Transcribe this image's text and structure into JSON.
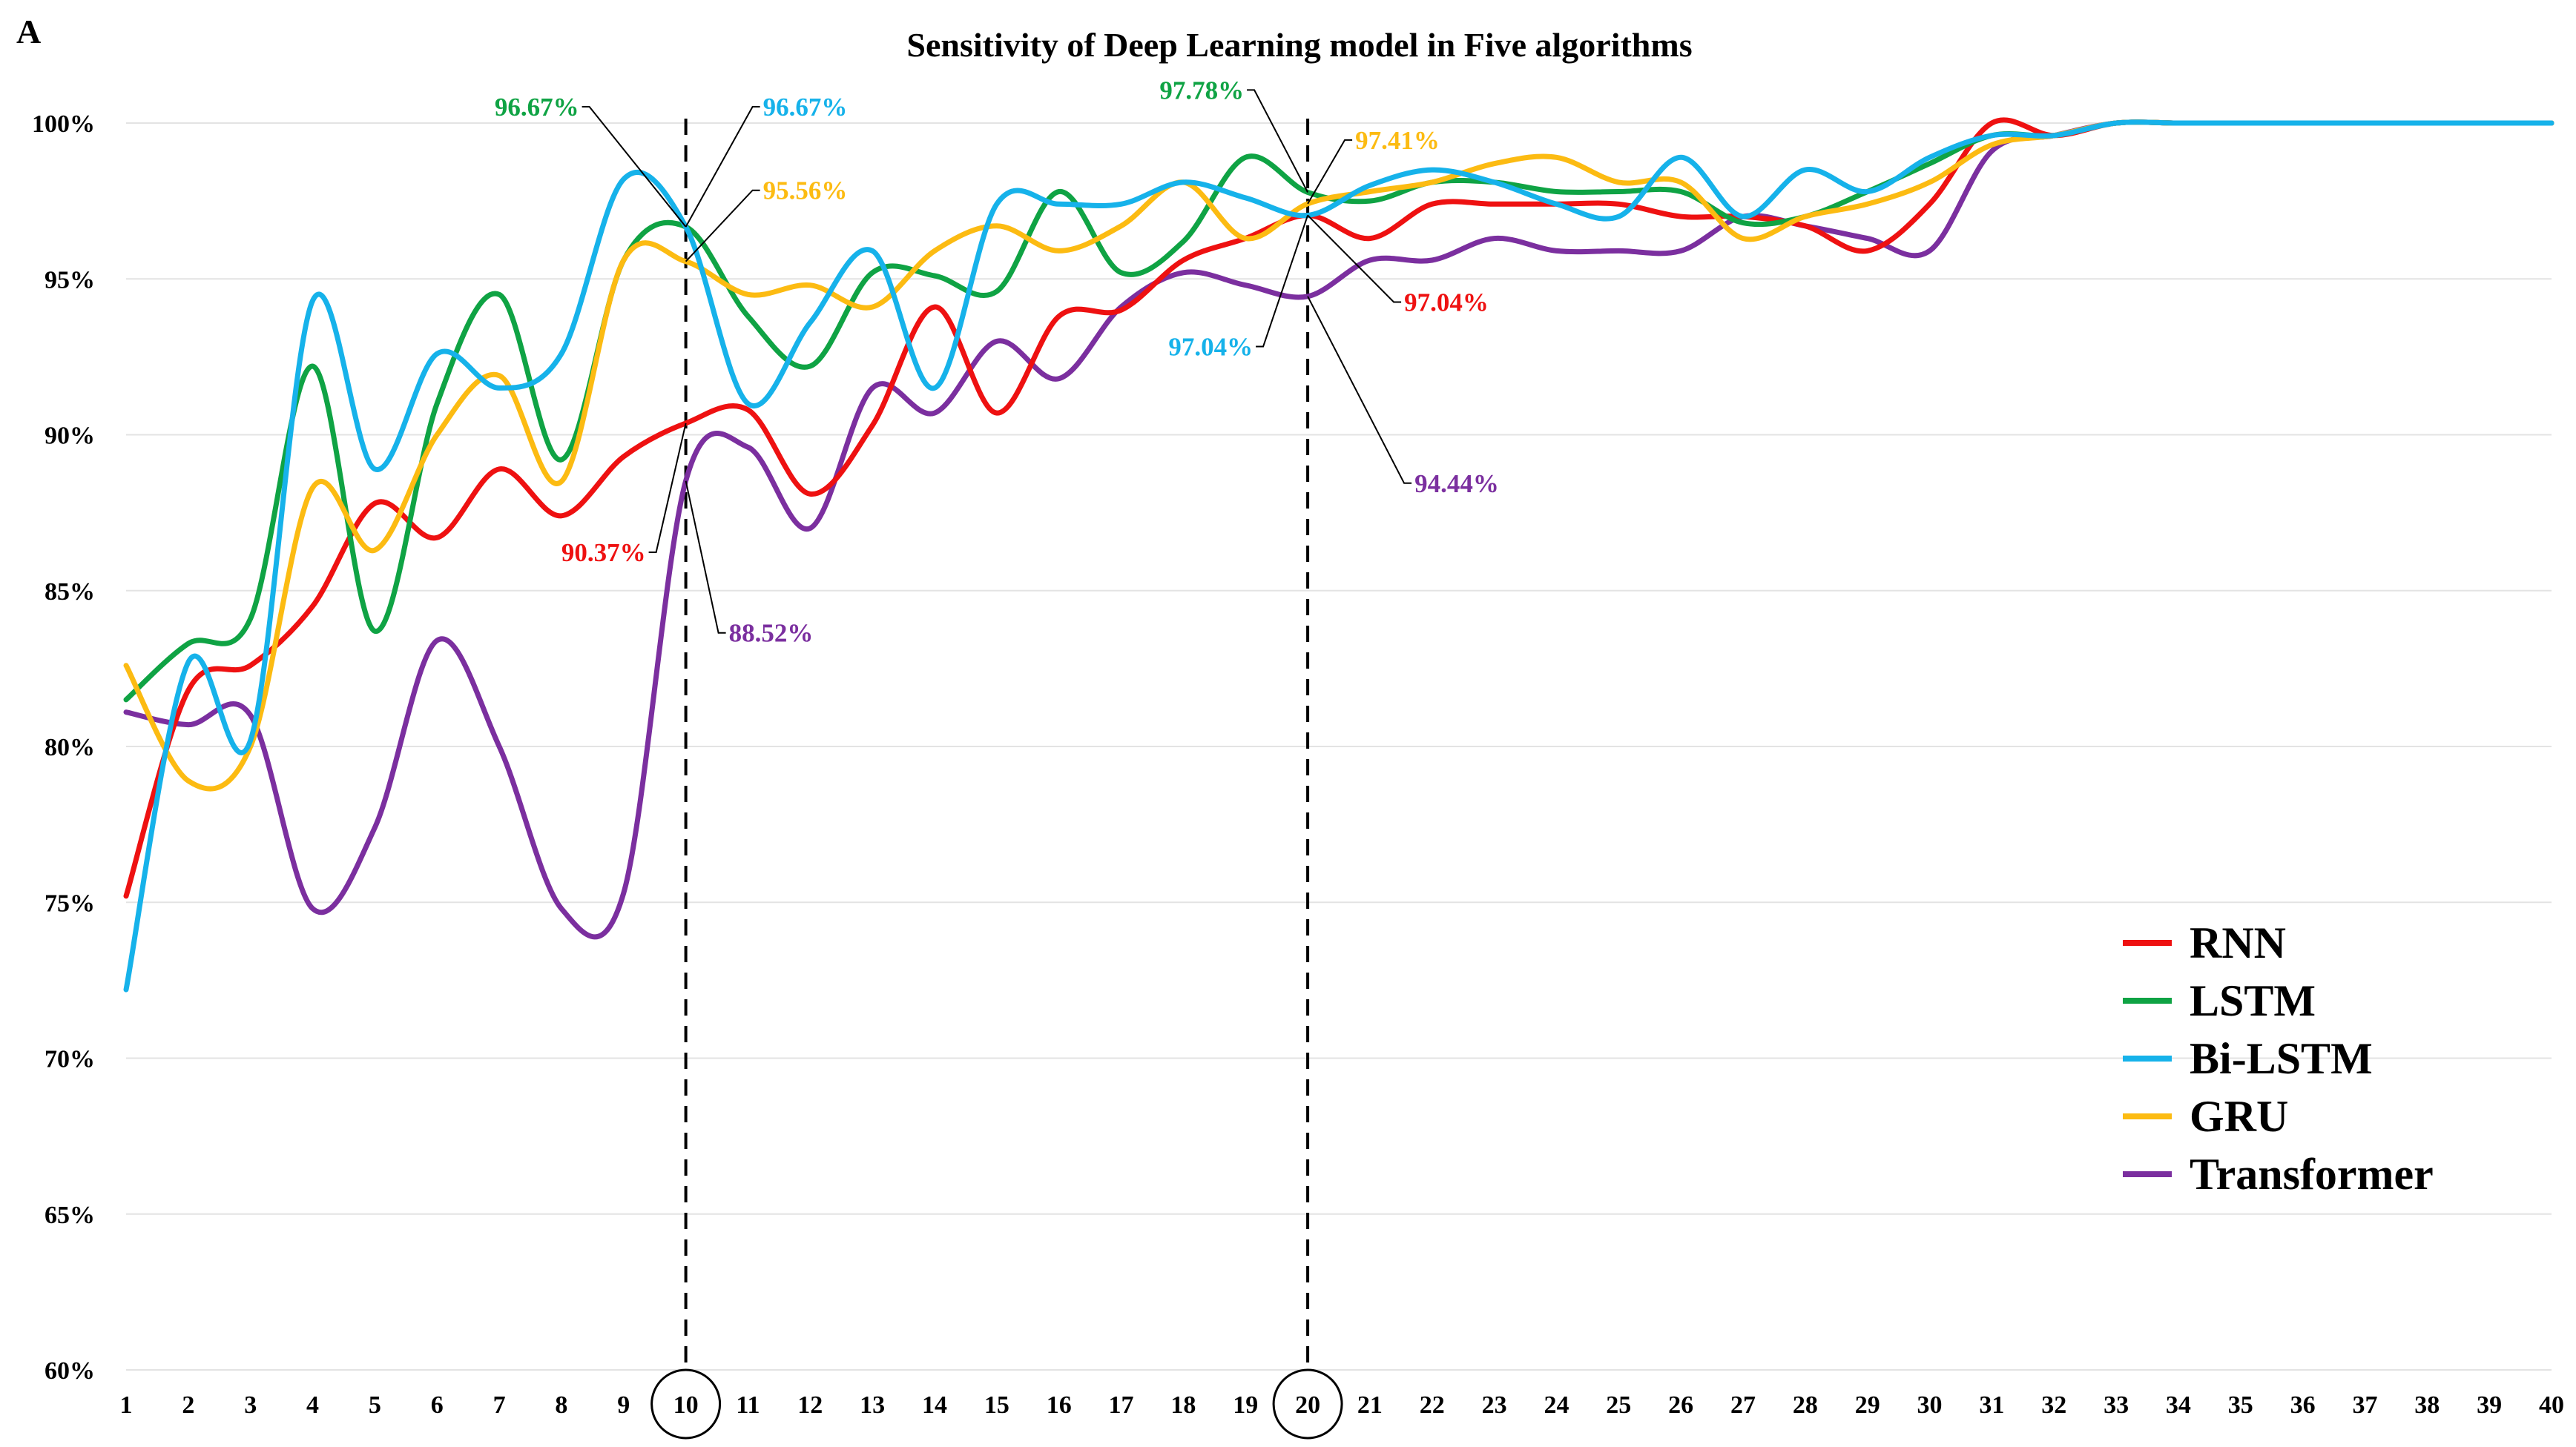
{
  "chart_data": {
    "type": "line",
    "panel_label": "A",
    "title": "Sensitivity of Deep Learning model in Five algorithms",
    "xlabel": "",
    "ylabel": "",
    "x": [
      1,
      2,
      3,
      4,
      5,
      6,
      7,
      8,
      9,
      10,
      11,
      12,
      13,
      14,
      15,
      16,
      17,
      18,
      19,
      20,
      21,
      22,
      23,
      24,
      25,
      26,
      27,
      28,
      29,
      30,
      31,
      32,
      33,
      34,
      35,
      36,
      37,
      38,
      39,
      40
    ],
    "xlim": [
      1,
      40
    ],
    "ylim": [
      60,
      100
    ],
    "yticks": [
      60,
      65,
      70,
      75,
      80,
      85,
      90,
      95,
      100
    ],
    "ytick_labels": [
      "60%",
      "65%",
      "70%",
      "75%",
      "80%",
      "85%",
      "90%",
      "95%",
      "100%"
    ],
    "grid": true,
    "legend_position": "bottom-right",
    "highlighted_x": [
      10,
      20
    ],
    "series": [
      {
        "name": "RNN",
        "color": "#ee1111",
        "values": [
          75.2,
          81.8,
          82.6,
          84.5,
          87.8,
          86.7,
          88.9,
          87.4,
          89.3,
          90.37,
          90.8,
          88.1,
          90.3,
          94.1,
          90.7,
          93.8,
          94.0,
          95.6,
          96.3,
          97.04,
          96.3,
          97.4,
          97.4,
          97.4,
          97.4,
          97.0,
          97.0,
          96.7,
          95.9,
          97.4,
          100.0,
          99.6,
          100,
          100,
          100,
          100,
          100,
          100,
          100,
          100
        ]
      },
      {
        "name": "LSTM",
        "color": "#0fa344",
        "values": [
          81.5,
          83.3,
          84.1,
          92.2,
          83.7,
          91.0,
          94.5,
          89.2,
          95.6,
          96.67,
          93.8,
          92.2,
          95.2,
          95.1,
          94.6,
          97.8,
          95.2,
          96.2,
          98.9,
          97.78,
          97.5,
          98.1,
          98.1,
          97.8,
          97.8,
          97.8,
          96.8,
          97.0,
          97.8,
          98.7,
          99.6,
          99.6,
          100,
          100,
          100,
          100,
          100,
          100,
          100,
          100
        ]
      },
      {
        "name": "Bi-LSTM",
        "color": "#16b2ea",
        "values": [
          72.2,
          82.7,
          80.2,
          94.3,
          88.9,
          92.6,
          91.5,
          92.6,
          98.2,
          96.67,
          91.0,
          93.6,
          95.9,
          91.5,
          97.4,
          97.4,
          97.4,
          98.1,
          97.6,
          97.04,
          98.0,
          98.5,
          98.1,
          97.4,
          97.0,
          98.9,
          97.0,
          98.5,
          97.8,
          98.9,
          99.6,
          99.6,
          100,
          100,
          100,
          100,
          100,
          100,
          100,
          100
        ]
      },
      {
        "name": "GRU",
        "color": "#fcbb12",
        "values": [
          82.6,
          78.9,
          80.0,
          88.3,
          86.3,
          90.0,
          91.9,
          88.5,
          95.6,
          95.56,
          94.5,
          94.8,
          94.1,
          95.9,
          96.7,
          95.9,
          96.7,
          98.1,
          96.3,
          97.41,
          97.8,
          98.1,
          98.7,
          98.9,
          98.1,
          98.1,
          96.3,
          97.0,
          97.4,
          98.1,
          99.3,
          99.6,
          100,
          100,
          100,
          100,
          100,
          100,
          100,
          100
        ]
      },
      {
        "name": "Transformer",
        "color": "#7b2f9f",
        "values": [
          81.1,
          80.7,
          81.0,
          74.8,
          77.4,
          83.4,
          80.0,
          74.8,
          75.3,
          88.52,
          89.6,
          87.0,
          91.5,
          90.7,
          93.0,
          91.8,
          94.1,
          95.2,
          94.8,
          94.44,
          95.6,
          95.6,
          96.3,
          95.9,
          95.9,
          95.9,
          97.0,
          96.7,
          96.3,
          95.9,
          99.1,
          99.6,
          100,
          100,
          100,
          100,
          100,
          100,
          100,
          100
        ]
      }
    ],
    "annotations": [
      {
        "text": "96.67%",
        "series": "LSTM",
        "x": 10,
        "value": 96.67,
        "color": "#0fa344"
      },
      {
        "text": "96.67%",
        "series": "Bi-LSTM",
        "x": 10,
        "value": 96.67,
        "color": "#16b2ea"
      },
      {
        "text": "95.56%",
        "series": "GRU",
        "x": 10,
        "value": 95.56,
        "color": "#fcbb12"
      },
      {
        "text": "90.37%",
        "series": "RNN",
        "x": 10,
        "value": 90.37,
        "color": "#ee1111"
      },
      {
        "text": "88.52%",
        "series": "Transformer",
        "x": 10,
        "value": 88.52,
        "color": "#7b2f9f"
      },
      {
        "text": "97.78%",
        "series": "LSTM",
        "x": 20,
        "value": 97.78,
        "color": "#0fa344"
      },
      {
        "text": "97.41%",
        "series": "GRU",
        "x": 20,
        "value": 97.41,
        "color": "#fcbb12"
      },
      {
        "text": "97.04%",
        "series": "RNN",
        "x": 20,
        "value": 97.04,
        "color": "#ee1111"
      },
      {
        "text": "97.04%",
        "series": "Bi-LSTM",
        "x": 20,
        "value": 97.04,
        "color": "#16b2ea"
      },
      {
        "text": "94.44%",
        "series": "Transformer",
        "x": 20,
        "value": 94.44,
        "color": "#7b2f9f"
      }
    ]
  }
}
